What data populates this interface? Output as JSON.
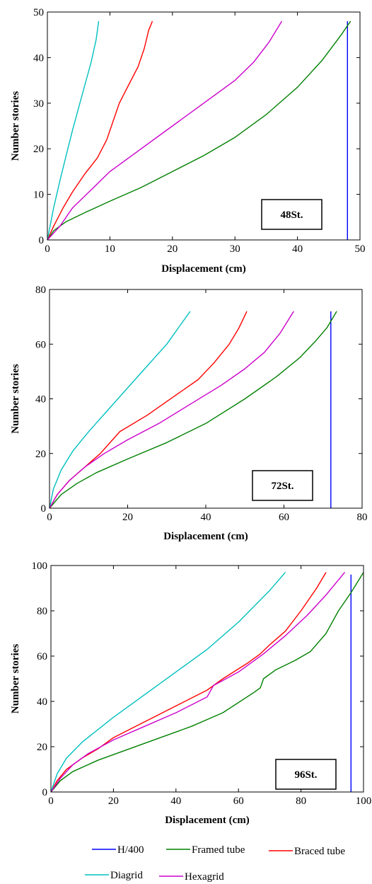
{
  "chart_data": [
    {
      "type": "line",
      "xlabel": "Displacement (cm)",
      "ylabel": "Number stories",
      "xlim": [
        0,
        50
      ],
      "ylim": [
        0,
        50
      ],
      "xticks": [
        0,
        10,
        20,
        30,
        40,
        50
      ],
      "yticks": [
        0,
        10,
        20,
        30,
        40,
        50
      ],
      "box_label": "48St.",
      "series": [
        {
          "name": "H/400",
          "color": "#0000ff",
          "x": [
            48,
            48
          ],
          "y": [
            0,
            48
          ]
        },
        {
          "name": "Framed tube",
          "color": "#008000",
          "x": [
            0,
            1,
            3,
            6,
            10,
            15,
            20,
            25,
            30,
            35,
            40,
            44,
            47,
            48.5
          ],
          "y": [
            0,
            2,
            4,
            6,
            8.5,
            11.5,
            15,
            18.5,
            22.5,
            27.5,
            33.5,
            39.5,
            45,
            48
          ]
        },
        {
          "name": "Braced tube",
          "color": "#ff0000",
          "x": [
            0,
            1,
            2.5,
            4,
            6,
            8,
            9.5,
            10.5,
            11.5,
            13,
            14.5,
            15.5,
            16.2,
            16.8
          ],
          "y": [
            0,
            3,
            7,
            10.5,
            14.5,
            18,
            22,
            26,
            30,
            34,
            38,
            42,
            46,
            48
          ]
        },
        {
          "name": "Diagrid",
          "color": "#00bfbf",
          "x": [
            0,
            1,
            2,
            3,
            4,
            5,
            6,
            7,
            7.8,
            8.2
          ],
          "y": [
            0,
            7,
            13,
            18.5,
            24,
            29,
            34,
            39,
            44,
            48
          ]
        },
        {
          "name": "Hexagrid",
          "color": "#cc00cc",
          "x": [
            0,
            2,
            4,
            7,
            10,
            15,
            20,
            25,
            30,
            33,
            35.5,
            37.5
          ],
          "y": [
            0,
            3,
            7,
            11,
            15,
            20,
            25,
            30,
            35,
            39,
            43.5,
            48
          ]
        }
      ]
    },
    {
      "type": "line",
      "xlabel": "Displacement (cm)",
      "ylabel": "Number stories",
      "xlim": [
        0,
        80
      ],
      "ylim": [
        0,
        80
      ],
      "xticks": [
        0,
        20,
        40,
        60,
        80
      ],
      "yticks": [
        0,
        20,
        40,
        60,
        80
      ],
      "box_label": "72St.",
      "series": [
        {
          "name": "H/400",
          "color": "#0000ff",
          "x": [
            72,
            72
          ],
          "y": [
            0,
            72
          ]
        },
        {
          "name": "Framed tube",
          "color": "#008000",
          "x": [
            0,
            3,
            7,
            12,
            20,
            30,
            40,
            50,
            58,
            64,
            68,
            71,
            73.5
          ],
          "y": [
            0,
            5,
            9,
            13,
            18,
            24,
            31,
            40,
            48,
            55,
            61,
            66,
            72
          ]
        },
        {
          "name": "Braced tube",
          "color": "#ff0000",
          "x": [
            0,
            2,
            5,
            9,
            13,
            18,
            25,
            32,
            38,
            42,
            46,
            48.5,
            50.5
          ],
          "y": [
            0,
            5,
            10,
            15,
            20,
            28,
            34,
            41,
            47,
            53,
            60,
            66,
            72
          ]
        },
        {
          "name": "Diagrid",
          "color": "#00bfbf",
          "x": [
            0,
            1,
            3,
            6,
            10,
            15,
            20,
            25,
            30,
            33,
            36
          ],
          "y": [
            0,
            7,
            14,
            21,
            28,
            36,
            44,
            52,
            60,
            66,
            72
          ]
        },
        {
          "name": "Hexagrid",
          "color": "#cc00cc",
          "x": [
            0,
            2,
            5,
            9,
            14,
            20,
            28,
            36,
            44,
            50,
            55,
            59,
            62.5
          ],
          "y": [
            0,
            5,
            10,
            15,
            20,
            25,
            31,
            38,
            45,
            51,
            57,
            64,
            72
          ]
        }
      ]
    },
    {
      "type": "line",
      "xlabel": "Displacement (cm)",
      "ylabel": "Number stories",
      "xlim": [
        0,
        100
      ],
      "ylim": [
        0,
        100
      ],
      "xticks": [
        0,
        20,
        40,
        60,
        80,
        100
      ],
      "yticks": [
        0,
        20,
        40,
        60,
        80,
        100
      ],
      "box_label": "96St.",
      "series": [
        {
          "name": "H/400",
          "color": "#0000ff",
          "x": [
            96,
            96
          ],
          "y": [
            0,
            96
          ]
        },
        {
          "name": "Framed tube",
          "color": "#008000",
          "x": [
            0,
            3,
            7,
            15,
            25,
            35,
            45,
            55,
            65,
            67,
            68,
            72,
            78,
            83,
            88,
            92,
            96,
            100
          ],
          "y": [
            0,
            5,
            9,
            14,
            19,
            24,
            29,
            35,
            44,
            46,
            50,
            54,
            58,
            62,
            70,
            80,
            88,
            97
          ]
        },
        {
          "name": "Braced tube",
          "color": "#ff0000",
          "x": [
            0,
            2,
            5,
            10,
            15,
            20,
            30,
            40,
            50,
            55,
            63,
            67,
            70,
            75,
            80,
            85,
            88
          ],
          "y": [
            0,
            5,
            10,
            15,
            19,
            24,
            31,
            38,
            45,
            50,
            57,
            61,
            65,
            71,
            80,
            90,
            97
          ]
        },
        {
          "name": "Diagrid",
          "color": "#00bfbf",
          "x": [
            0,
            2,
            5,
            10,
            20,
            30,
            40,
            50,
            60,
            70,
            75
          ],
          "y": [
            0,
            8,
            15,
            22,
            33,
            43,
            53,
            63,
            75,
            89,
            97
          ]
        },
        {
          "name": "Hexagrid",
          "color": "#cc00cc",
          "x": [
            0,
            3,
            7,
            12,
            20,
            30,
            40,
            50,
            52,
            60,
            68,
            75,
            82,
            88,
            94
          ],
          "y": [
            0,
            6,
            12,
            17,
            23,
            29,
            35,
            42,
            47,
            53,
            61,
            69,
            78,
            87,
            97
          ]
        }
      ]
    }
  ],
  "legend": [
    {
      "name": "H/400",
      "color": "#0000ff"
    },
    {
      "name": "Framed tube",
      "color": "#008000"
    },
    {
      "name": "Braced tube",
      "color": "#ff0000"
    },
    {
      "name": "Diagrid",
      "color": "#00bfbf"
    },
    {
      "name": "Hexagrid",
      "color": "#cc00cc"
    }
  ]
}
